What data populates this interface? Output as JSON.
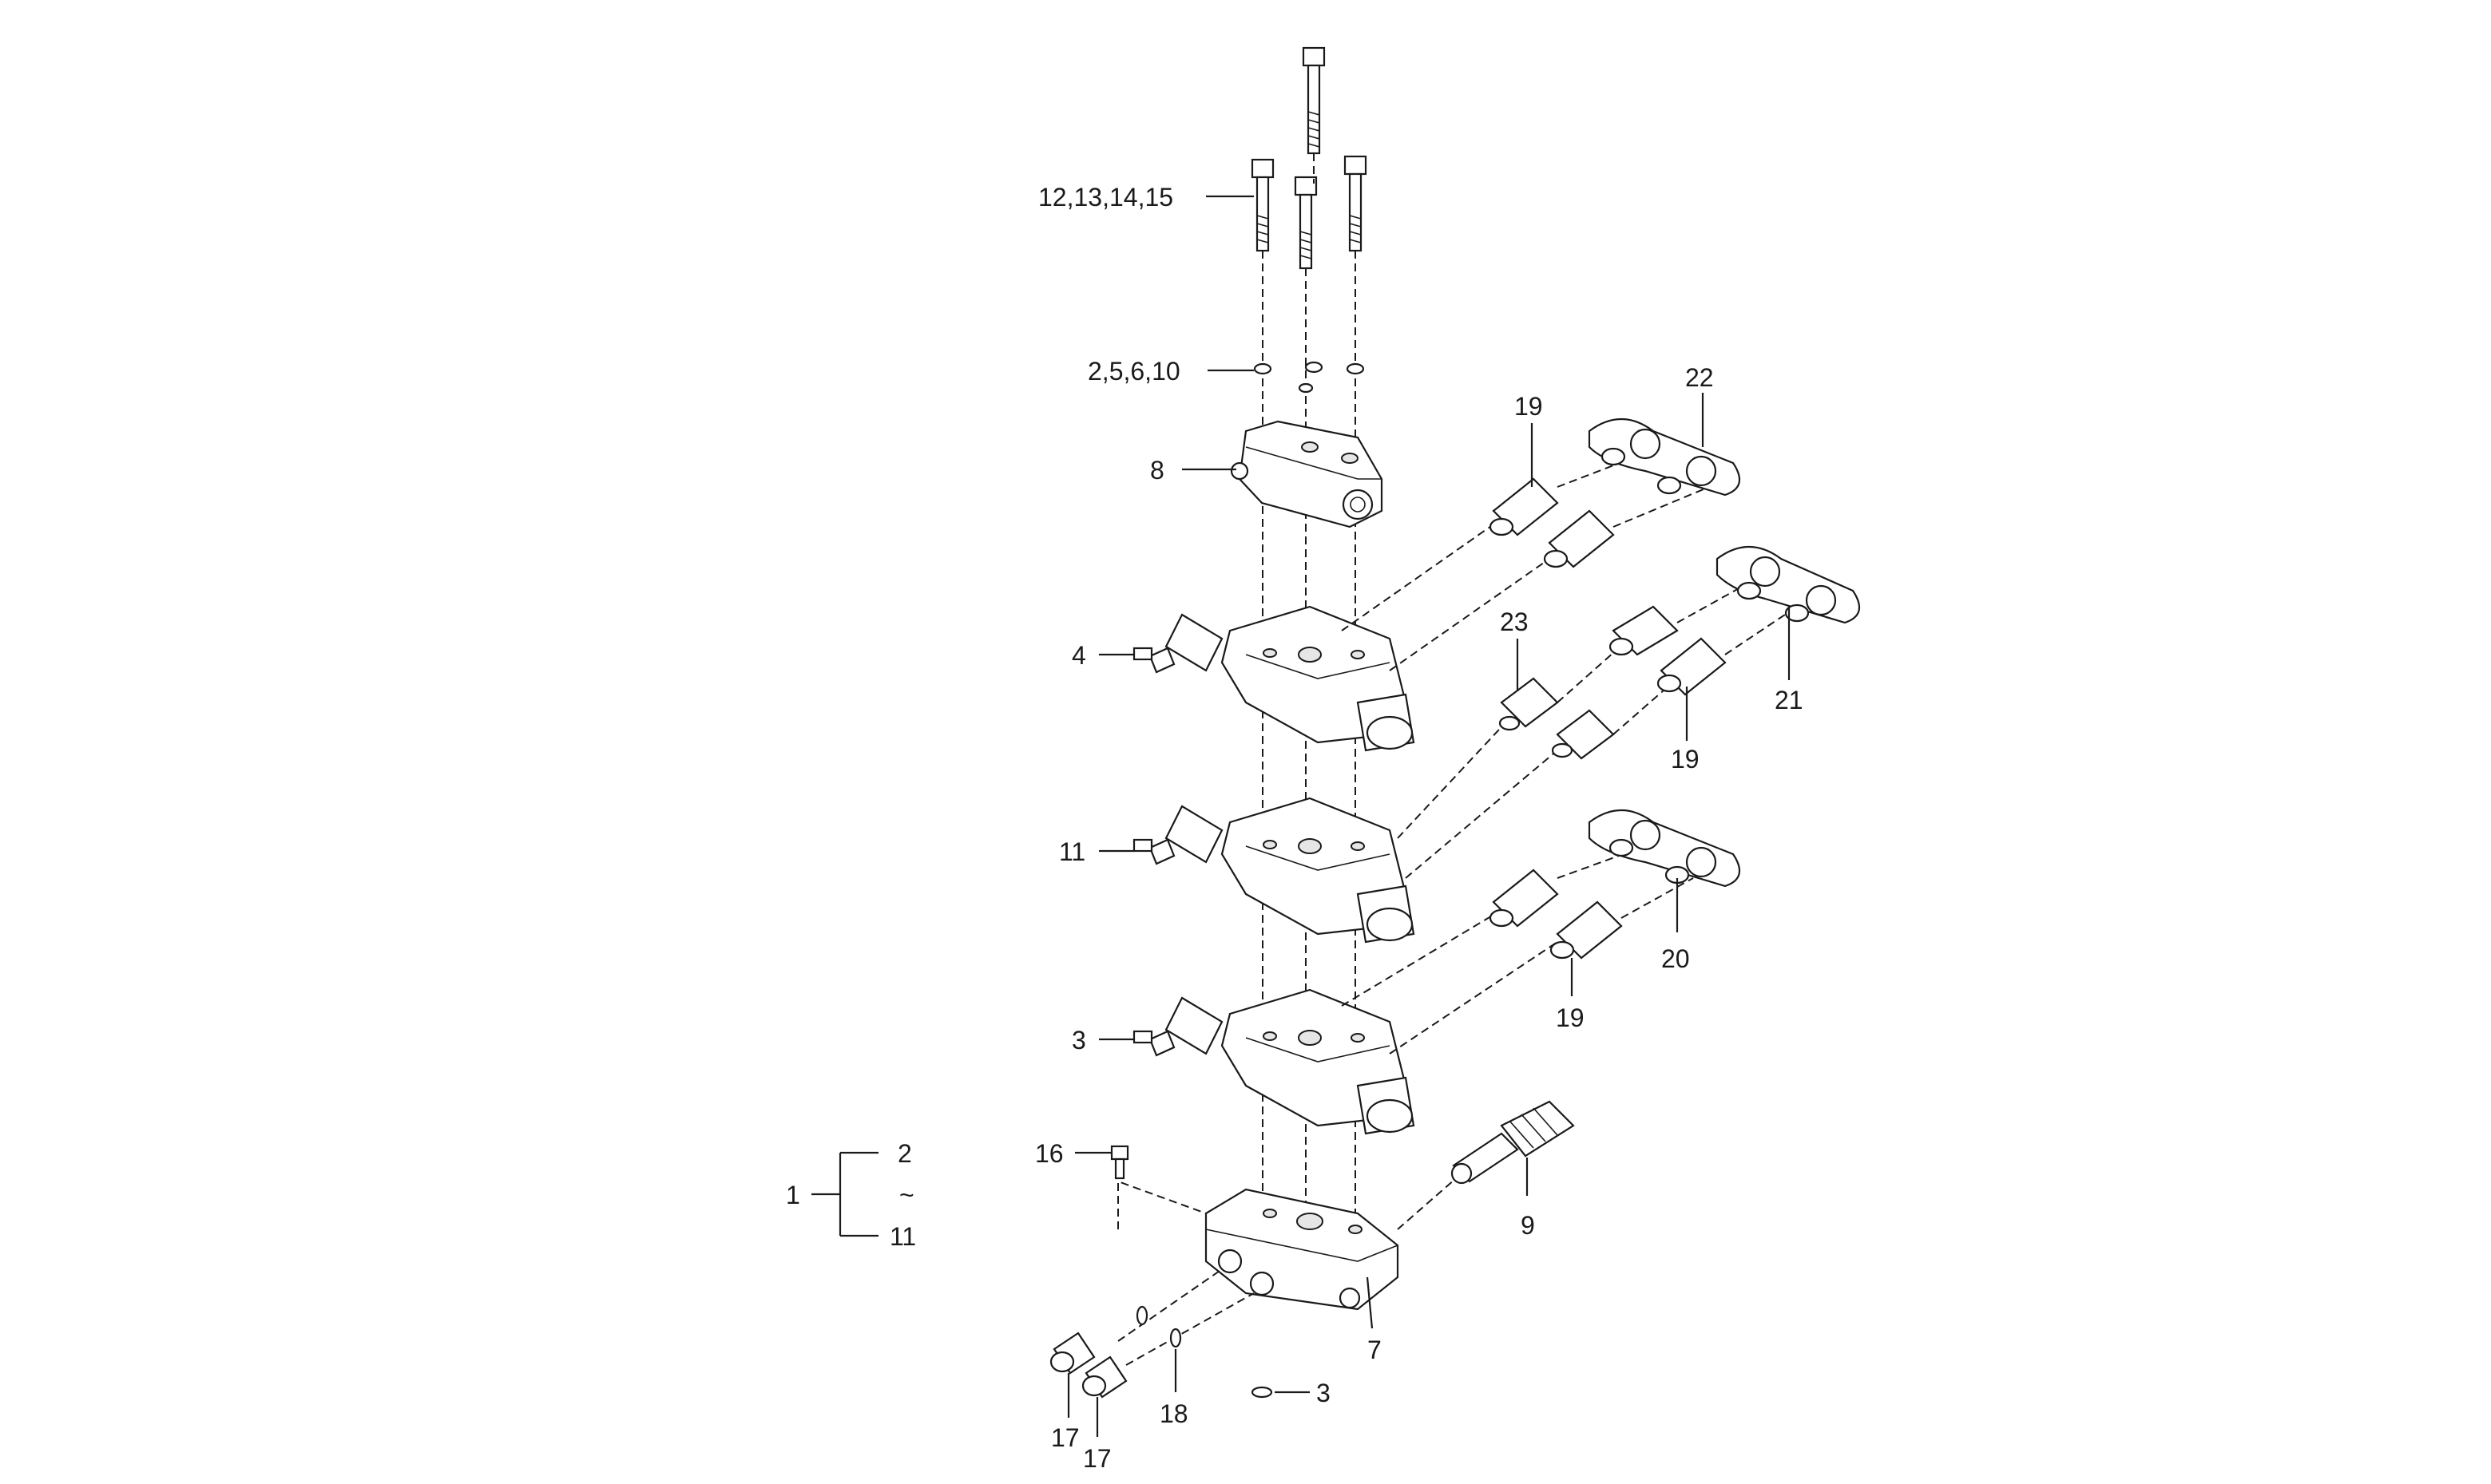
{
  "callouts": {
    "c_12_15": "12,13,14,15",
    "c_2_10": "2,5,6,10",
    "c_8": "8",
    "c_4": "4",
    "c_11": "11",
    "c_3_upper": "3",
    "c_16": "16",
    "c_1": "1",
    "c_2": "2",
    "c_tilde": "~",
    "c_11_bracket": "11",
    "c_19_a": "19",
    "c_22": "22",
    "c_23": "23",
    "c_19_b": "19",
    "c_21": "21",
    "c_20": "20",
    "c_19_c": "19",
    "c_9": "9",
    "c_7": "7",
    "c_3_lower": "3",
    "c_17_a": "17",
    "c_17_b": "17",
    "c_18": "18"
  }
}
